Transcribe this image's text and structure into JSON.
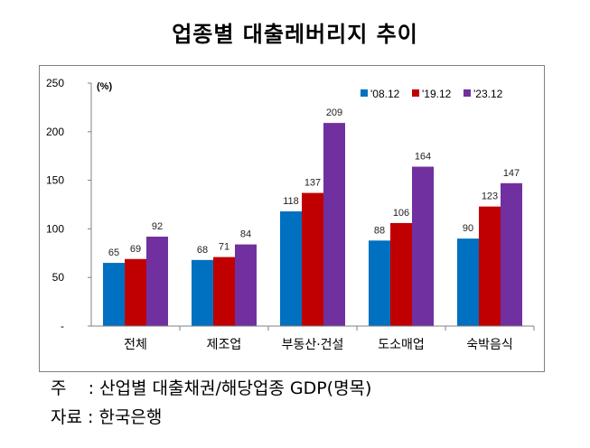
{
  "title": "업종별 대출레버리지 추이",
  "notes": {
    "line1": "주    : 산업별 대출채권/해당업종 GDP(명목)",
    "line2": "자료 : 한국은행"
  },
  "chart_data": {
    "type": "bar",
    "title": "업종별 대출레버리지 추이",
    "unit_label": "(%)",
    "xlabel": "",
    "ylabel": "(%)",
    "ylim": [
      0,
      250
    ],
    "yticks": [
      "250",
      "200",
      "150",
      "100",
      "50",
      "-"
    ],
    "ytick_values": [
      250,
      200,
      150,
      100,
      50,
      0
    ],
    "grid": false,
    "legend_position": "top-right",
    "categories": [
      "전체",
      "제조업",
      "부동산·건설",
      "도소매업",
      "숙박음식"
    ],
    "series": [
      {
        "name": "'08.12",
        "color": "#0070C0",
        "values": [
          65,
          68,
          118,
          88,
          90
        ]
      },
      {
        "name": "'19.12",
        "color": "#C00000",
        "values": [
          69,
          71,
          137,
          106,
          123
        ]
      },
      {
        "name": "'23.12",
        "color": "#7030A0",
        "values": [
          92,
          84,
          209,
          164,
          147
        ]
      }
    ]
  }
}
